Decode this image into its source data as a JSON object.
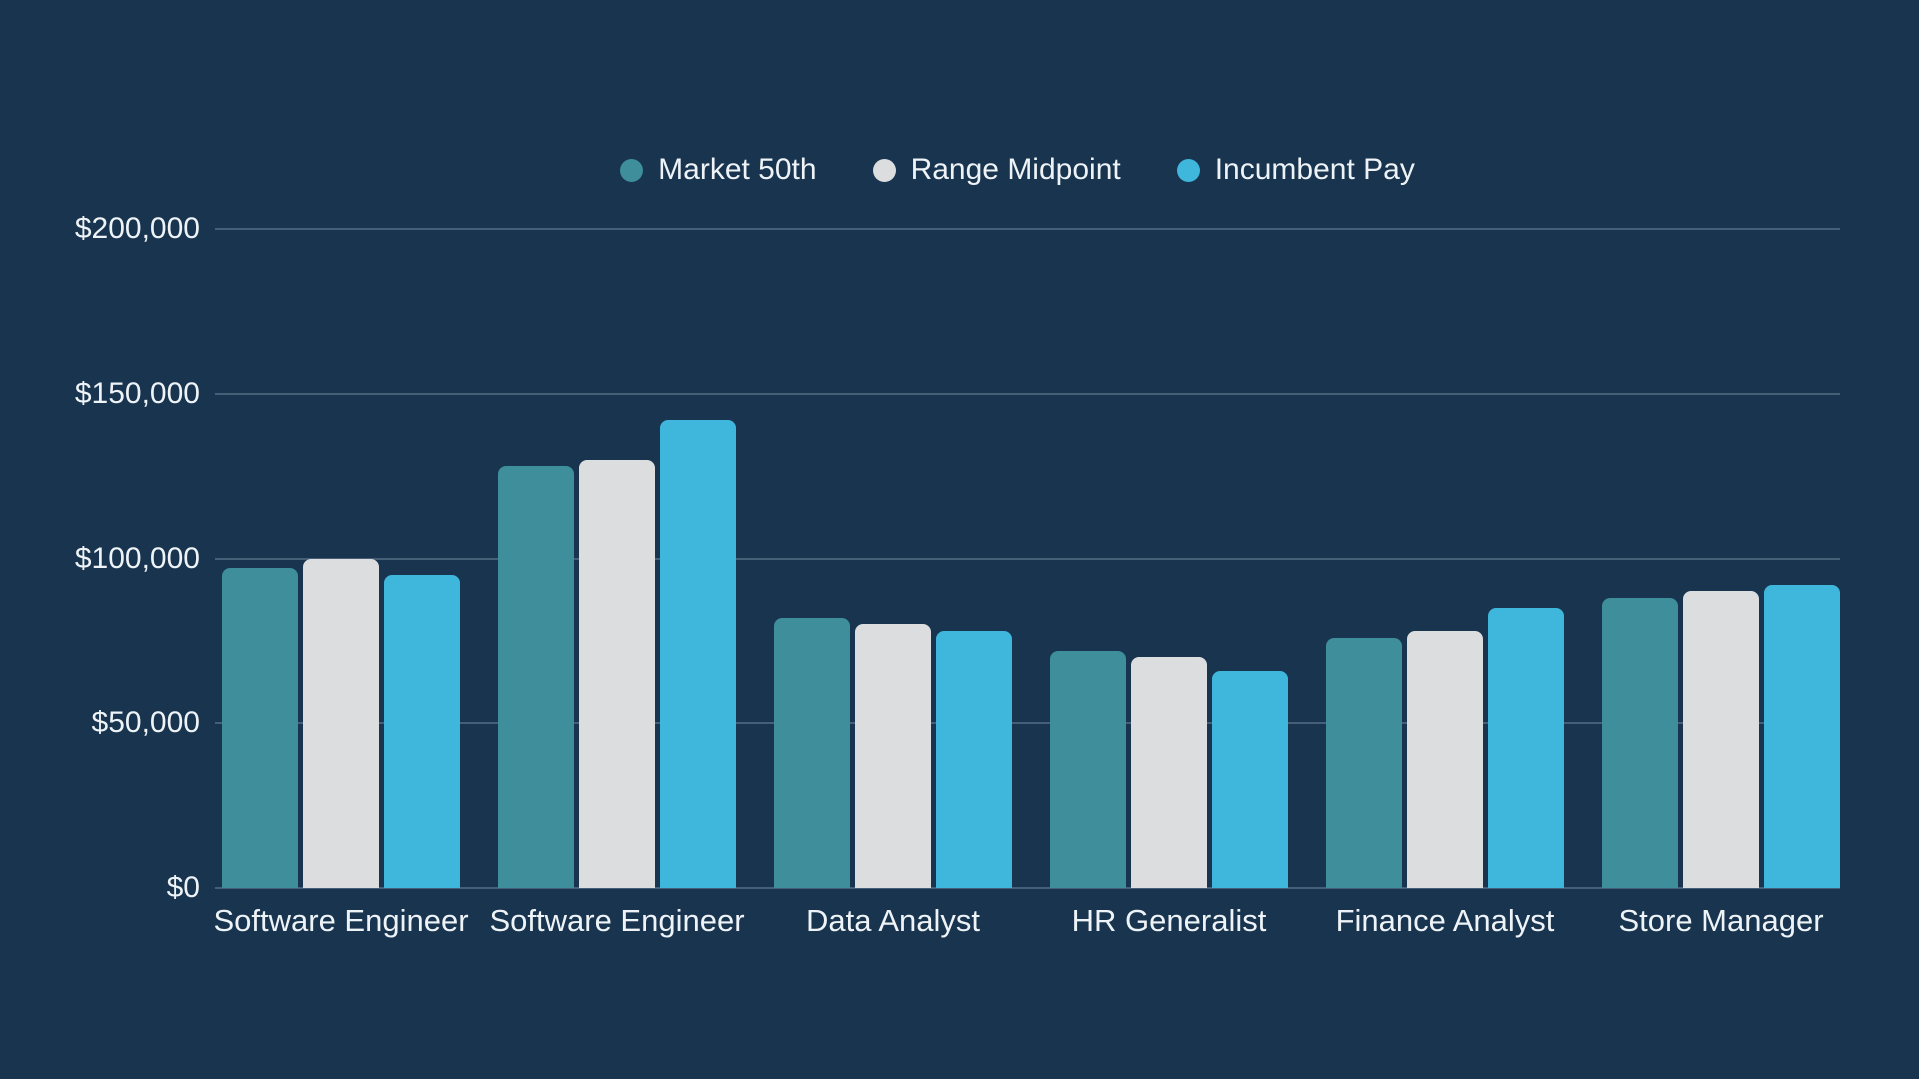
{
  "chart": {
    "background_color": "#18344e",
    "text_color": "#eef3f7",
    "gridline_color": "rgba(176,196,215,0.30)"
  },
  "chart_data": {
    "type": "bar",
    "title": "",
    "xlabel": "",
    "ylabel": "",
    "categories": [
      "Software Engineer",
      "Software Engineer",
      "Data Analyst",
      "HR Generalist",
      "Finance Analyst",
      "Store Manager"
    ],
    "series": [
      {
        "name": "Market 50th",
        "color": "#3e8e9b",
        "values": [
          97000,
          128000,
          82000,
          72000,
          76000,
          88000
        ]
      },
      {
        "name": "Range Midpoint",
        "color": "#dcdddf",
        "values": [
          100000,
          130000,
          80000,
          70000,
          78000,
          90000
        ]
      },
      {
        "name": "Incumbent Pay",
        "color": "#3fb6dc",
        "values": [
          95000,
          142000,
          78000,
          66000,
          85000,
          92000
        ]
      }
    ],
    "ylim": [
      0,
      200000
    ],
    "y_ticks": [
      0,
      50000,
      100000,
      150000,
      200000
    ],
    "y_tick_labels": [
      "$0",
      "$50,000",
      "$100,000",
      "$150,000",
      "$200,000"
    ],
    "grid": "horizontal",
    "legend_position": "top-center"
  }
}
